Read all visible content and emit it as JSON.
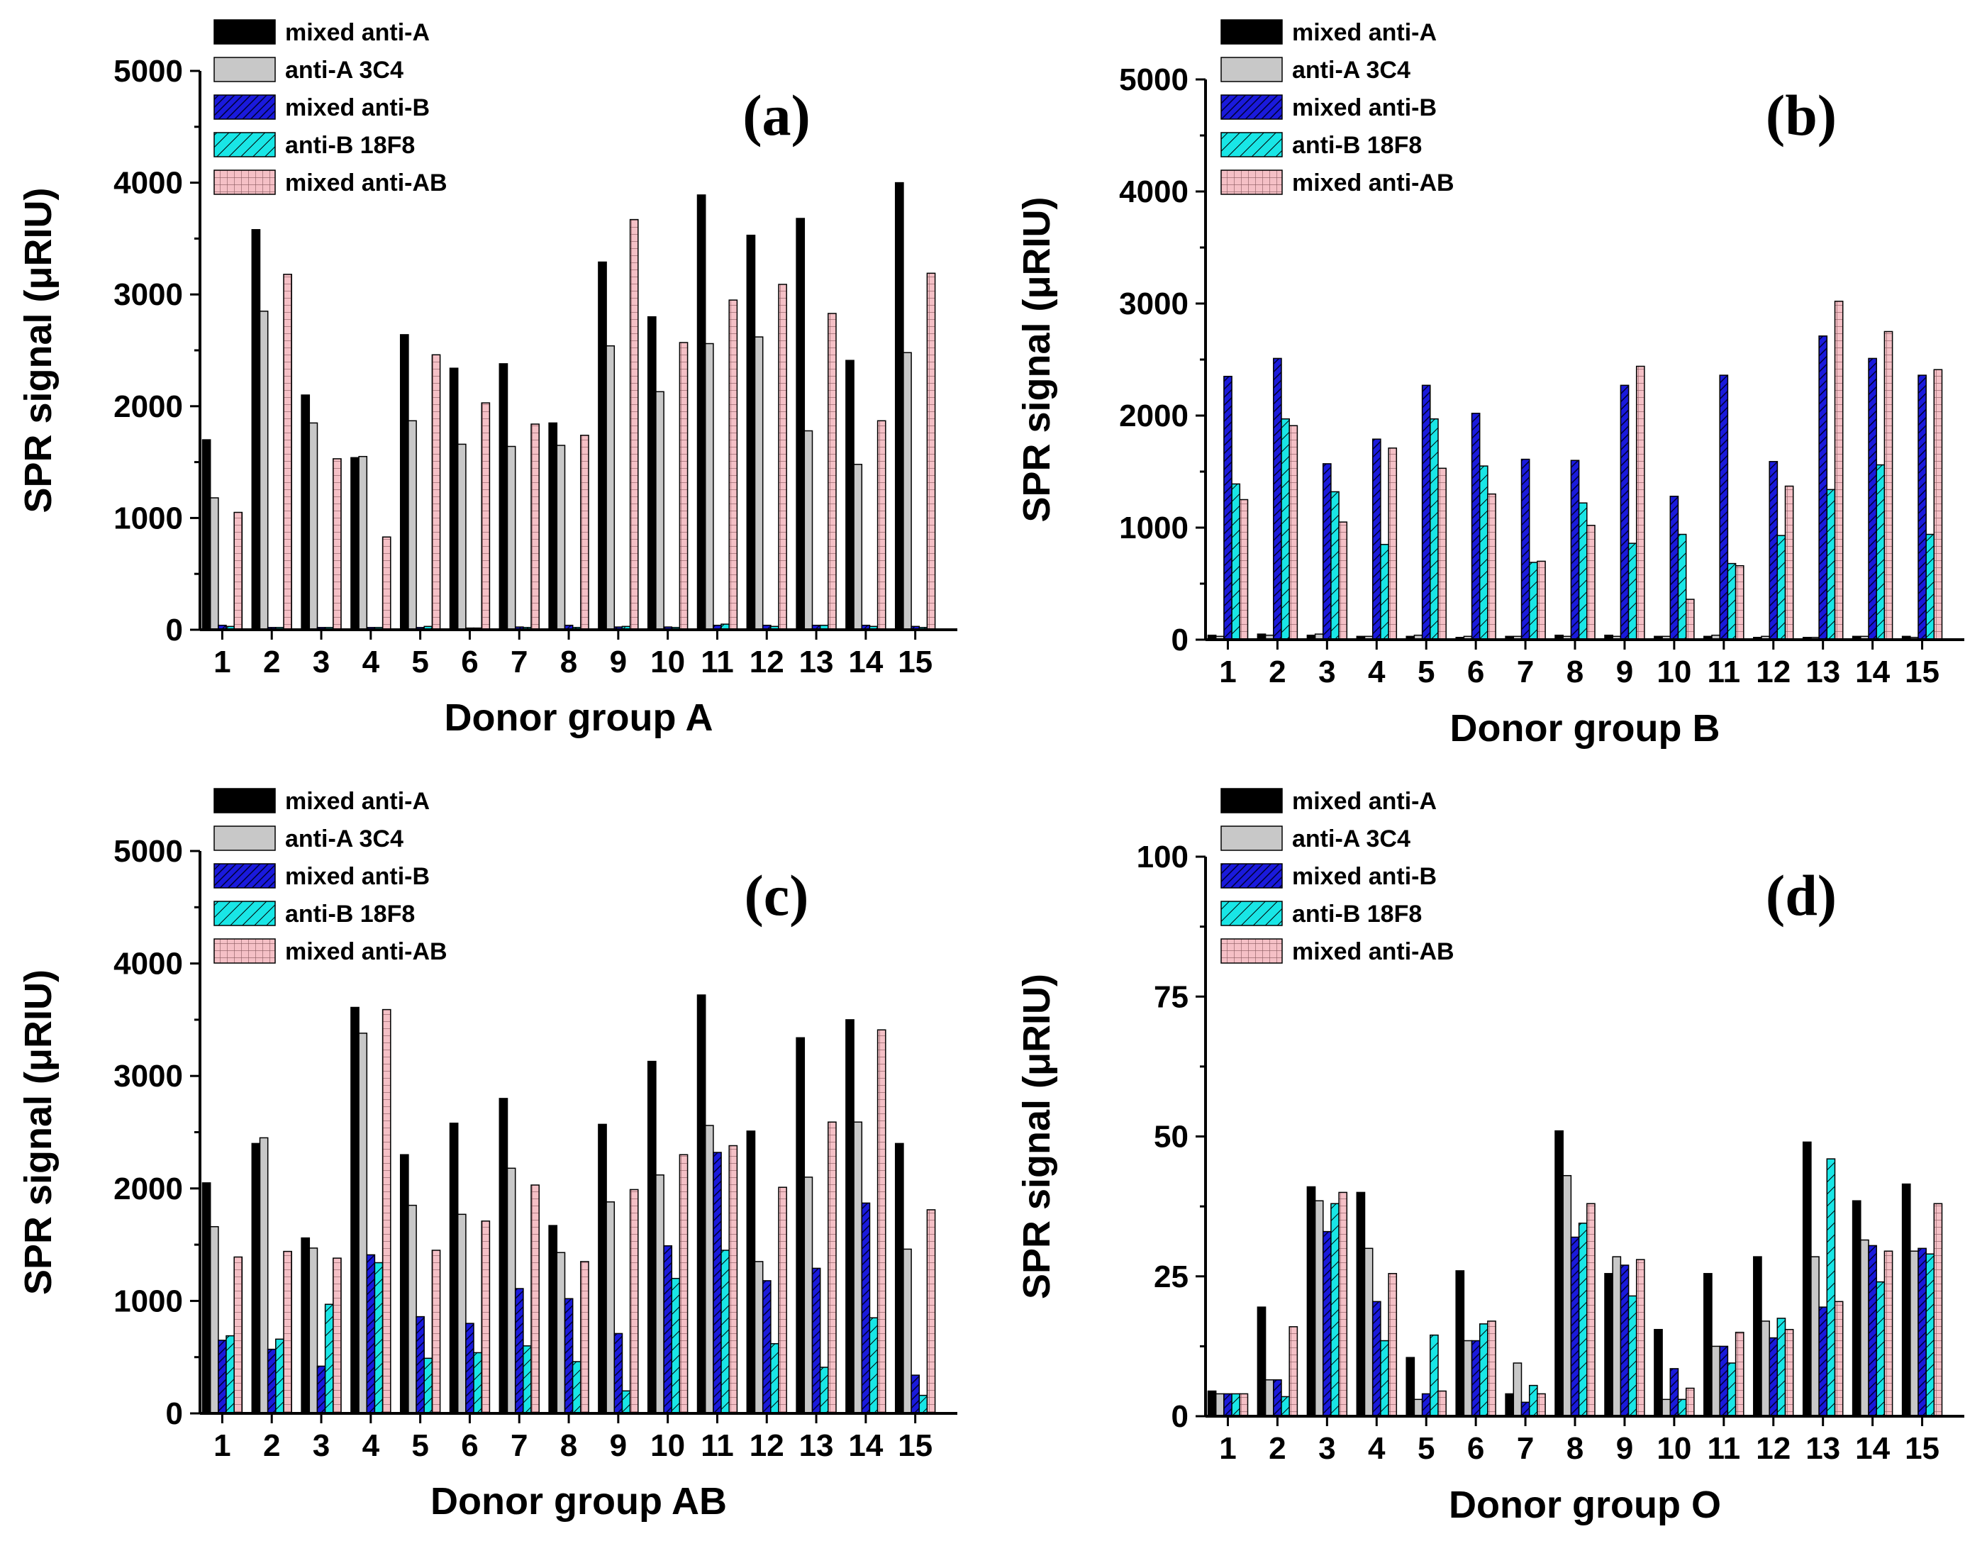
{
  "figure": {
    "series_styles": [
      {
        "name": "mixed anti-A",
        "color": "#000000",
        "pattern": "solid"
      },
      {
        "name": "anti-A 3C4",
        "color": "#c8c8c8",
        "pattern": "solid"
      },
      {
        "name": "mixed anti-B",
        "color": "#1a1adc",
        "pattern": "diag-dense"
      },
      {
        "name": "anti-B 18F8",
        "color": "#19e6e6",
        "pattern": "diag"
      },
      {
        "name": "mixed anti-AB",
        "color": "#f5c0c6",
        "pattern": "grid"
      }
    ]
  },
  "chart_data": [
    {
      "type": "bar",
      "panel_label": "(a)",
      "xlabel": "Donor group A",
      "ylabel": "SPR signal (μRIU)",
      "ylim": [
        0,
        5000
      ],
      "yticks": [
        0,
        1000,
        2000,
        3000,
        4000,
        5000
      ],
      "categories": [
        "1",
        "2",
        "3",
        "4",
        "5",
        "6",
        "7",
        "8",
        "9",
        "10",
        "11",
        "12",
        "13",
        "14",
        "15"
      ],
      "legend": [
        "mixed anti-A",
        "anti-A 3C4",
        "mixed anti-B",
        "anti-B 18F8",
        "mixed anti-AB"
      ],
      "series": [
        {
          "name": "mixed anti-A",
          "values": [
            1700,
            3580,
            2100,
            1540,
            2640,
            2340,
            2380,
            1850,
            3290,
            2800,
            3890,
            3530,
            3680,
            2410,
            4000
          ]
        },
        {
          "name": "anti-A 3C4",
          "values": [
            1180,
            2850,
            1850,
            1550,
            1870,
            1660,
            1640,
            1650,
            2540,
            2130,
            2560,
            2620,
            1780,
            1480,
            2480
          ]
        },
        {
          "name": "mixed anti-B",
          "values": [
            40,
            20,
            20,
            20,
            20,
            15,
            25,
            40,
            25,
            25,
            40,
            40,
            40,
            40,
            30
          ]
        },
        {
          "name": "anti-B 18F8",
          "values": [
            30,
            20,
            20,
            20,
            30,
            15,
            20,
            20,
            30,
            20,
            50,
            30,
            40,
            30,
            20
          ]
        },
        {
          "name": "mixed anti-AB",
          "values": [
            1050,
            3180,
            1530,
            830,
            2460,
            2030,
            1840,
            1740,
            3670,
            2570,
            2950,
            3090,
            2830,
            1870,
            3190
          ]
        }
      ]
    },
    {
      "type": "bar",
      "panel_label": "(b)",
      "xlabel": "Donor group B",
      "ylabel": "SPR signal (μRIU)",
      "ylim": [
        0,
        5000
      ],
      "yticks": [
        0,
        1000,
        2000,
        3000,
        4000,
        5000
      ],
      "categories": [
        "1",
        "2",
        "3",
        "4",
        "5",
        "6",
        "7",
        "8",
        "9",
        "10",
        "11",
        "12",
        "13",
        "14",
        "15"
      ],
      "legend": [
        "mixed anti-A",
        "anti-A 3C4",
        "mixed anti-B",
        "anti-B 18F8",
        "mixed anti-AB"
      ],
      "series": [
        {
          "name": "mixed anti-A",
          "values": [
            40,
            50,
            40,
            30,
            30,
            20,
            30,
            40,
            40,
            30,
            30,
            20,
            20,
            30,
            30
          ]
        },
        {
          "name": "anti-A 3C4",
          "values": [
            30,
            40,
            50,
            30,
            40,
            30,
            30,
            30,
            30,
            30,
            40,
            30,
            20,
            30,
            20
          ]
        },
        {
          "name": "mixed anti-B",
          "values": [
            2350,
            2510,
            1570,
            1790,
            2270,
            2020,
            1610,
            1600,
            2270,
            1280,
            2360,
            1590,
            2710,
            2510,
            2360
          ]
        },
        {
          "name": "anti-B 18F8",
          "values": [
            1390,
            1970,
            1320,
            850,
            1970,
            1550,
            690,
            1220,
            860,
            940,
            680,
            930,
            1340,
            1560,
            940
          ]
        },
        {
          "name": "mixed anti-AB",
          "values": [
            1250,
            1910,
            1050,
            1710,
            1530,
            1300,
            700,
            1020,
            2440,
            360,
            660,
            1370,
            3020,
            2750,
            2410
          ]
        }
      ]
    },
    {
      "type": "bar",
      "panel_label": "(c)",
      "xlabel": "Donor group AB",
      "ylabel": "SPR signal (μRIU)",
      "ylim": [
        0,
        5000
      ],
      "yticks": [
        0,
        1000,
        2000,
        3000,
        4000,
        5000
      ],
      "categories": [
        "1",
        "2",
        "3",
        "4",
        "5",
        "6",
        "7",
        "8",
        "9",
        "10",
        "11",
        "12",
        "13",
        "14",
        "15"
      ],
      "legend": [
        "mixed anti-A",
        "anti-A 3C4",
        "mixed anti-B",
        "anti-B 18F8",
        "mixed anti-AB"
      ],
      "series": [
        {
          "name": "mixed anti-A",
          "values": [
            2050,
            2400,
            1560,
            3610,
            2300,
            2580,
            2800,
            1670,
            2570,
            3130,
            3720,
            2510,
            3340,
            3500,
            2400
          ]
        },
        {
          "name": "anti-A 3C4",
          "values": [
            1660,
            2450,
            1470,
            3380,
            1850,
            1770,
            2180,
            1430,
            1880,
            2120,
            2560,
            1350,
            2100,
            2590,
            1460
          ]
        },
        {
          "name": "mixed anti-B",
          "values": [
            650,
            570,
            420,
            1410,
            860,
            800,
            1110,
            1020,
            710,
            1490,
            2320,
            1180,
            1290,
            1870,
            340
          ]
        },
        {
          "name": "anti-B 18F8",
          "values": [
            690,
            660,
            970,
            1340,
            490,
            540,
            600,
            460,
            200,
            1200,
            1450,
            620,
            410,
            850,
            160
          ]
        },
        {
          "name": "mixed anti-AB",
          "values": [
            1390,
            1440,
            1380,
            3590,
            1450,
            1710,
            2030,
            1350,
            1990,
            2300,
            2380,
            2010,
            2590,
            3410,
            1810
          ]
        }
      ]
    },
    {
      "type": "bar",
      "panel_label": "(d)",
      "xlabel": "Donor group O",
      "ylabel": "SPR signal (μRIU)",
      "ylim": [
        0,
        100
      ],
      "yticks": [
        0,
        25,
        50,
        75,
        100
      ],
      "categories": [
        "1",
        "2",
        "3",
        "4",
        "5",
        "6",
        "7",
        "8",
        "9",
        "10",
        "11",
        "12",
        "13",
        "14",
        "15"
      ],
      "legend": [
        "mixed anti-A",
        "anti-A 3C4",
        "mixed anti-B",
        "anti-B 18F8",
        "mixed anti-AB"
      ],
      "series": [
        {
          "name": "mixed anti-A",
          "values": [
            4.5,
            19.5,
            41,
            40,
            10.5,
            26,
            4,
            51,
            25.5,
            15.5,
            25.5,
            28.5,
            49,
            38.5,
            41.5
          ]
        },
        {
          "name": "anti-A 3C4",
          "values": [
            4,
            6.5,
            38.5,
            30,
            3,
            13.5,
            9.5,
            43,
            28.5,
            3,
            12.5,
            17,
            28.5,
            31.5,
            29.5
          ]
        },
        {
          "name": "mixed anti-B",
          "values": [
            4,
            6.5,
            33,
            20.5,
            4,
            13.5,
            2.5,
            32,
            27,
            8.5,
            12.5,
            14,
            19.5,
            30.5,
            30
          ]
        },
        {
          "name": "anti-B 18F8",
          "values": [
            4,
            3.5,
            38,
            13.5,
            14.5,
            16.5,
            5.5,
            34.5,
            21.5,
            3,
            9.5,
            17.5,
            46,
            24,
            29
          ]
        },
        {
          "name": "mixed anti-AB",
          "values": [
            4,
            16,
            40,
            25.5,
            4.5,
            17,
            4,
            38,
            28,
            5,
            15,
            15.5,
            20.5,
            29.5,
            38
          ]
        }
      ]
    }
  ]
}
